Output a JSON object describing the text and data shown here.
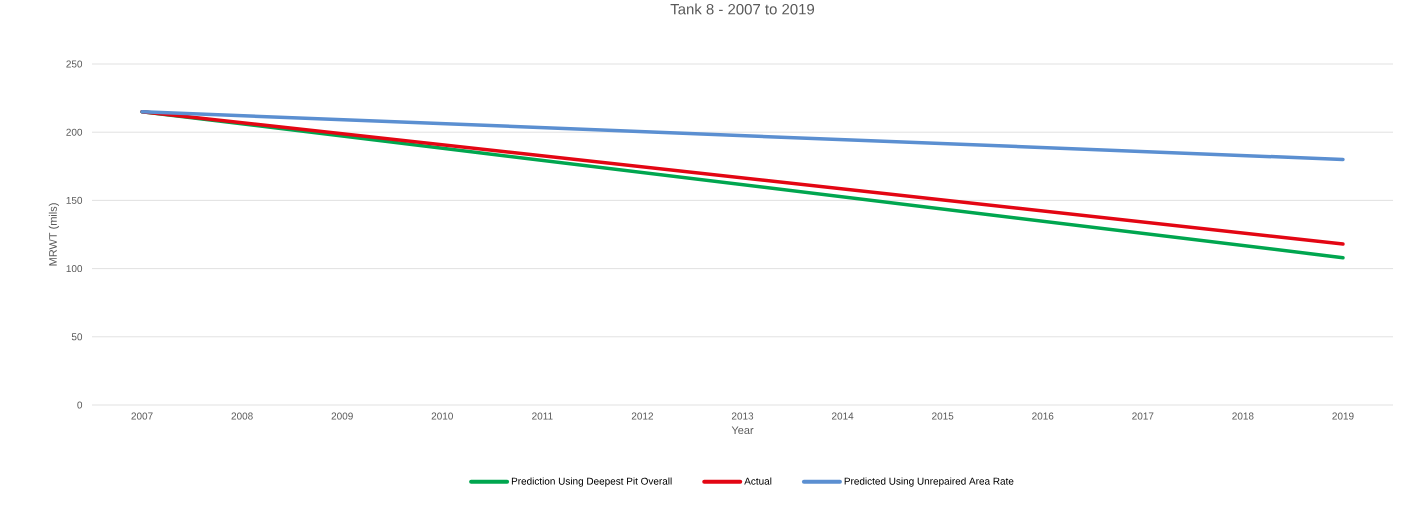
{
  "chart_data": {
    "type": "line",
    "title": "Tank 8 - 2007 to 2019",
    "xlabel": "Year",
    "ylabel": "MRWT (mils)",
    "xlim": [
      2006.5,
      2019.5
    ],
    "xticks": [
      2007,
      2008,
      2009,
      2010,
      2011,
      2012,
      2013,
      2014,
      2015,
      2016,
      2017,
      2018,
      2019
    ],
    "x": [
      2007,
      2019
    ],
    "ylim": [
      0,
      250
    ],
    "yticks": [
      0,
      50,
      100,
      150,
      200,
      250
    ],
    "grid": "y",
    "legend": "bottom",
    "marker": "none",
    "line_style": "solid",
    "series": [
      {
        "name": "Prediction Using Deepest Pit Overall",
        "color": "#00a64f",
        "values": [
          215,
          108
        ]
      },
      {
        "name": "Actual",
        "color": "#e30613",
        "values": [
          215,
          118
        ]
      },
      {
        "name": "Predicted Using Unrepaired Area Rate",
        "color": "#5b8fd1",
        "values": [
          215,
          180
        ]
      }
    ]
  }
}
